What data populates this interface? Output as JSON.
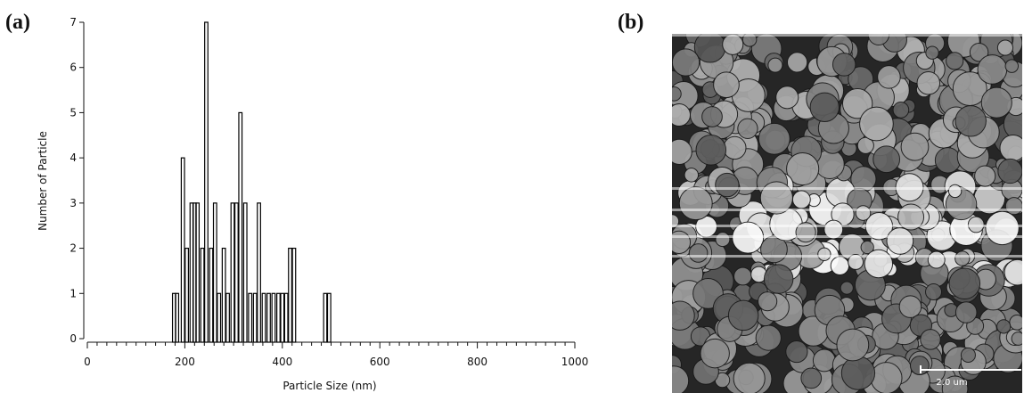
{
  "panels": {
    "a_label": "(a)",
    "b_label": "(b)"
  },
  "chart_data": {
    "type": "bar",
    "title": "",
    "xlabel": "Particle Size (nm)",
    "ylabel": "Number of Particle",
    "xlim": [
      0,
      1000
    ],
    "ylim": [
      0,
      7
    ],
    "xticks": [
      0,
      200,
      400,
      600,
      800,
      1000
    ],
    "yticks": [
      0,
      1,
      2,
      3,
      4,
      5,
      6,
      7
    ],
    "grid": false,
    "bar_color": "#000000",
    "x": [
      178,
      184,
      196,
      204,
      214,
      220,
      226,
      236,
      244,
      254,
      262,
      270,
      280,
      288,
      298,
      306,
      314,
      324,
      334,
      344,
      352,
      362,
      372,
      382,
      392,
      400,
      408,
      416,
      424,
      488,
      496
    ],
    "values": [
      1,
      1,
      4,
      2,
      3,
      3,
      3,
      2,
      7,
      2,
      3,
      1,
      2,
      1,
      3,
      3,
      5,
      3,
      1,
      1,
      3,
      1,
      1,
      1,
      1,
      1,
      1,
      2,
      2,
      1,
      1
    ]
  },
  "micrograph": {
    "scale_bar_label": "2.0 um"
  }
}
